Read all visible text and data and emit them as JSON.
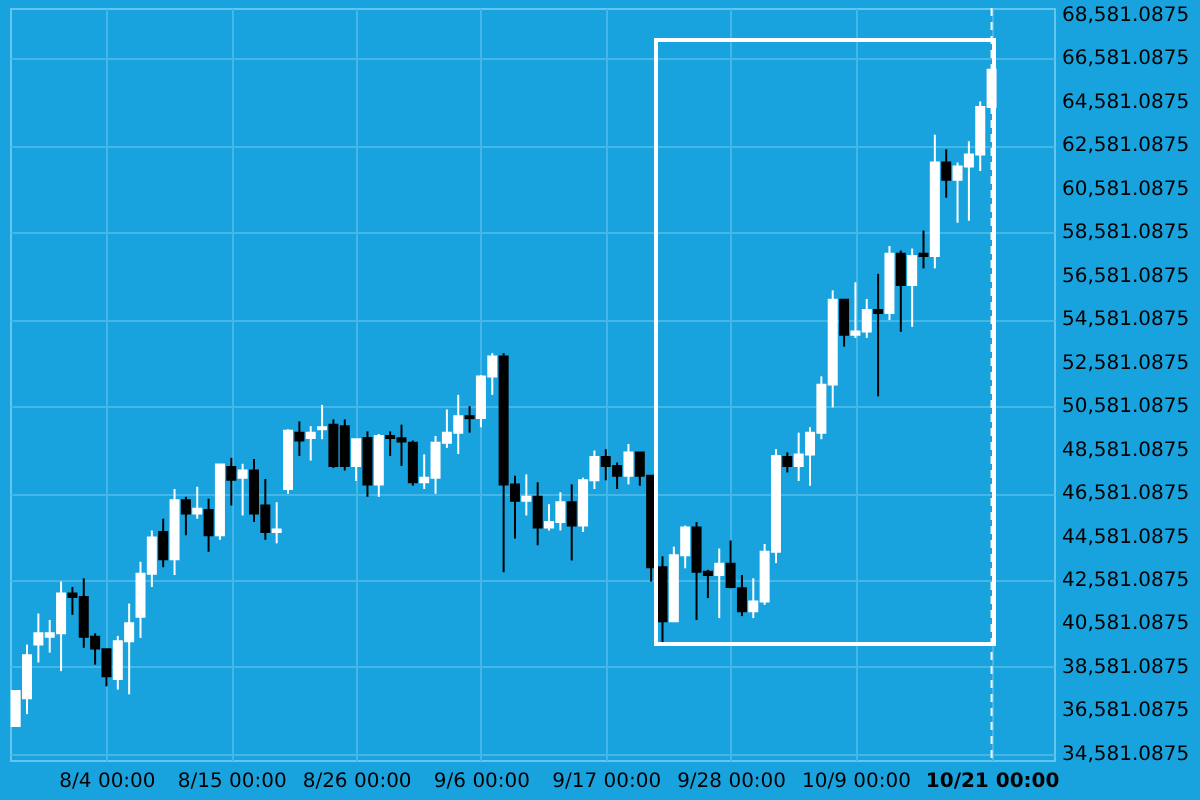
{
  "chart_data": {
    "type": "candlestick",
    "x": [
      "--07-27",
      "--07-28",
      "--07-29",
      "--07-30",
      "--07-31",
      "--08-01",
      "--08-02",
      "--08-03",
      "--08-04",
      "--08-05",
      "--08-06",
      "--08-07",
      "--08-08",
      "--08-09",
      "--08-10",
      "--08-11",
      "--08-12",
      "--08-13",
      "--08-14",
      "--08-15",
      "--08-16",
      "--08-17",
      "--08-18",
      "--08-19",
      "--08-20",
      "--08-21",
      "--08-22",
      "--08-23",
      "--08-24",
      "--08-25",
      "--08-26",
      "--08-27",
      "--08-28",
      "--08-29",
      "--08-30",
      "--08-31",
      "--09-01",
      "--09-02",
      "--09-03",
      "--09-04",
      "--09-05",
      "--09-06",
      "--09-07",
      "--09-08",
      "--09-09",
      "--09-10",
      "--09-11",
      "--09-12",
      "--09-13",
      "--09-14",
      "--09-15",
      "--09-16",
      "--09-17",
      "--09-18",
      "--09-19",
      "--09-20",
      "--09-21",
      "--09-22",
      "--09-23",
      "--09-24",
      "--09-25",
      "--09-26",
      "--09-27",
      "--09-28",
      "--09-29",
      "--09-30",
      "--10-01",
      "--10-02",
      "--10-03",
      "--10-04",
      "--10-05",
      "--10-06",
      "--10-07",
      "--10-08",
      "--10-09",
      "--10-10",
      "--10-11",
      "--10-12",
      "--10-13",
      "--10-14",
      "--10-15",
      "--10-16",
      "--10-17",
      "--10-18",
      "--10-19",
      "--10-20",
      "--10-21"
    ],
    "ohlc": [
      [
        35860,
        37480,
        35860,
        37480
      ],
      [
        37140,
        39610,
        36410,
        39120
      ],
      [
        39610,
        41040,
        38790,
        40130
      ],
      [
        39970,
        40740,
        39240,
        40130
      ],
      [
        40130,
        42510,
        38390,
        41960
      ],
      [
        41960,
        42260,
        40980,
        41800
      ],
      [
        41800,
        42660,
        39460,
        39970
      ],
      [
        39970,
        40130,
        38690,
        39430
      ],
      [
        39400,
        39400,
        37690,
        38150
      ],
      [
        38030,
        40010,
        37540,
        39760
      ],
      [
        39760,
        41500,
        37320,
        40590
      ],
      [
        40890,
        43420,
        39920,
        42870
      ],
      [
        42870,
        44860,
        42260,
        44540
      ],
      [
        44790,
        45400,
        43170,
        43540
      ],
      [
        43540,
        46770,
        42810,
        46250
      ],
      [
        46250,
        46410,
        44640,
        45640
      ],
      [
        45640,
        46870,
        45400,
        45860
      ],
      [
        45800,
        46320,
        43880,
        44640
      ],
      [
        44640,
        47900,
        44430,
        47900
      ],
      [
        47780,
        48200,
        46010,
        47190
      ],
      [
        47290,
        47930,
        45550,
        47620
      ],
      [
        47620,
        48150,
        45250,
        45640
      ],
      [
        46010,
        47230,
        44430,
        44790
      ],
      [
        44790,
        46160,
        44270,
        44900
      ],
      [
        46770,
        49520,
        46550,
        49450
      ],
      [
        49360,
        49880,
        48290,
        49000
      ],
      [
        49110,
        49660,
        48080,
        49360
      ],
      [
        49520,
        50640,
        49060,
        49610
      ],
      [
        49730,
        49970,
        47740,
        47830
      ],
      [
        49660,
        49970,
        47620,
        47830
      ],
      [
        47830,
        49060,
        47140,
        49060
      ],
      [
        49110,
        49420,
        46410,
        46980
      ],
      [
        46980,
        49300,
        46410,
        49210
      ],
      [
        49210,
        49420,
        48290,
        49110
      ],
      [
        49100,
        49730,
        47830,
        48960
      ],
      [
        48900,
        49000,
        46920,
        47080
      ],
      [
        47080,
        48360,
        46770,
        47290
      ],
      [
        47290,
        49210,
        46550,
        48900
      ],
      [
        48900,
        50430,
        48660,
        49360
      ],
      [
        49360,
        51100,
        48380,
        50120
      ],
      [
        50120,
        50580,
        49360,
        50030
      ],
      [
        50030,
        52010,
        49610,
        51950
      ],
      [
        51950,
        53020,
        51100,
        52860
      ],
      [
        52860,
        53020,
        42940,
        46980
      ],
      [
        46980,
        47380,
        44490,
        46230
      ],
      [
        46230,
        47440,
        45550,
        46410
      ],
      [
        46410,
        47080,
        44180,
        45000
      ],
      [
        45000,
        46070,
        44860,
        45250
      ],
      [
        45250,
        46620,
        44860,
        46160
      ],
      [
        46160,
        46980,
        43480,
        45090
      ],
      [
        45090,
        47290,
        44790,
        47170
      ],
      [
        47170,
        48540,
        46770,
        48240
      ],
      [
        48240,
        48600,
        47170,
        47830
      ],
      [
        47830,
        47990,
        46770,
        47380
      ],
      [
        47380,
        48840,
        46980,
        48450
      ],
      [
        48450,
        48450,
        46920,
        47380
      ],
      [
        47380,
        47380,
        42510,
        43170
      ],
      [
        43170,
        43670,
        39670,
        40680
      ],
      [
        40680,
        44120,
        40680,
        43720
      ],
      [
        43720,
        45090,
        43120,
        45000
      ],
      [
        45000,
        45250,
        40740,
        42960
      ],
      [
        42960,
        43050,
        41750,
        42810
      ],
      [
        42810,
        44030,
        40830,
        43330
      ],
      [
        43330,
        44400,
        42200,
        42260
      ],
      [
        42200,
        42810,
        40920,
        41140
      ],
      [
        41140,
        42660,
        40830,
        41590
      ],
      [
        41590,
        44240,
        41440,
        43880
      ],
      [
        43880,
        48600,
        43360,
        48290
      ],
      [
        48240,
        48450,
        47530,
        47830
      ],
      [
        47830,
        49360,
        47140,
        48360
      ],
      [
        48360,
        49610,
        46920,
        49360
      ],
      [
        49360,
        51950,
        49060,
        51560
      ],
      [
        51580,
        55910,
        50520,
        55480
      ],
      [
        55480,
        55480,
        53320,
        53870
      ],
      [
        53870,
        56280,
        53720,
        54020
      ],
      [
        54020,
        55510,
        53720,
        55000
      ],
      [
        55000,
        56670,
        51030,
        54870
      ],
      [
        54870,
        57950,
        54540,
        57590
      ],
      [
        57590,
        57740,
        54000,
        56150
      ],
      [
        56150,
        57830,
        54230,
        57490
      ],
      [
        57590,
        58660,
        56920,
        57490
      ],
      [
        57490,
        63070,
        56920,
        61790
      ],
      [
        61790,
        62400,
        60170,
        61000
      ],
      [
        61000,
        61790,
        59020,
        61610
      ],
      [
        61610,
        62770,
        59110,
        62160
      ],
      [
        62160,
        64600,
        61400,
        64350
      ],
      [
        64350,
        66060,
        64350,
        66060
      ]
    ],
    "colors": [
      "#ffffff",
      "#ffffff",
      "#ffffff",
      "#ffffff",
      "#ffffff",
      "#000000",
      "#000000",
      "#000000",
      "#000000",
      "#ffffff",
      "#ffffff",
      "#ffffff",
      "#ffffff",
      "#000000",
      "#ffffff",
      "#000000",
      "#ffffff",
      "#000000",
      "#ffffff",
      "#000000",
      "#ffffff",
      "#000000",
      "#000000",
      "#ffffff",
      "#ffffff",
      "#000000",
      "#ffffff",
      "#ffffff",
      "#000000",
      "#000000",
      "#ffffff",
      "#000000",
      "#ffffff",
      "#000000",
      "#000000",
      "#000000",
      "#ffffff",
      "#ffffff",
      "#ffffff",
      "#ffffff",
      "#000000",
      "#ffffff",
      "#ffffff",
      "#000000",
      "#000000",
      "#ffffff",
      "#000000",
      "#ffffff",
      "#ffffff",
      "#000000",
      "#ffffff",
      "#ffffff",
      "#000000",
      "#000000",
      "#ffffff",
      "#000000",
      "#000000",
      "#000000",
      "#ffffff",
      "#ffffff",
      "#000000",
      "#000000",
      "#ffffff",
      "#000000",
      "#000000",
      "#ffffff",
      "#ffffff",
      "#ffffff",
      "#000000",
      "#ffffff",
      "#ffffff",
      "#ffffff",
      "#ffffff",
      "#000000",
      "#ffffff",
      "#ffffff",
      "#000000",
      "#ffffff",
      "#000000",
      "#ffffff",
      "#000000",
      "#ffffff",
      "#000000",
      "#ffffff",
      "#ffffff",
      "#ffffff",
      "#ffffff"
    ],
    "xlim": [
      "--07-26T12:00",
      "--10-26T12:00"
    ],
    "xticks": [
      {
        "value": "--08-04",
        "label": "8/4 00:00"
      },
      {
        "value": "--08-15",
        "label": "8/15 00:00"
      },
      {
        "value": "--08-26",
        "label": "8/26 00:00"
      },
      {
        "value": "--09-06",
        "label": "9/6 00:00"
      },
      {
        "value": "--09-17",
        "label": "9/17 00:00"
      },
      {
        "value": "--09-28",
        "label": "9/28 00:00"
      },
      {
        "value": "--10-09",
        "label": "10/9 00:00"
      },
      {
        "value": "--10-21",
        "label": "10/21 00:00"
      }
    ],
    "ylim": [
      34300,
      68900
    ],
    "yticks": [
      {
        "value": 34581.0875,
        "label": "34,581.0875"
      },
      {
        "value": 36581.0875,
        "label": "36,581.0875"
      },
      {
        "value": 38581.0875,
        "label": "38,581.0875"
      },
      {
        "value": 40581.0875,
        "label": "40,581.0875"
      },
      {
        "value": 42581.0875,
        "label": "42,581.0875"
      },
      {
        "value": 44581.0875,
        "label": "44,581.0875"
      },
      {
        "value": 46581.0875,
        "label": "46,581.0875"
      },
      {
        "value": 48581.0875,
        "label": "48,581.0875"
      },
      {
        "value": 50581.0875,
        "label": "50,581.0875"
      },
      {
        "value": 52581.0875,
        "label": "52,581.0875"
      },
      {
        "value": 54581.0875,
        "label": "54,581.0875"
      },
      {
        "value": 56581.0875,
        "label": "56,581.0875"
      },
      {
        "value": 58581.0875,
        "label": "58,581.0875"
      },
      {
        "value": 60581.0875,
        "label": "60,581.0875"
      },
      {
        "value": 62581.0875,
        "label": "62,581.0875"
      },
      {
        "value": 64581.0875,
        "label": "64,581.0875"
      },
      {
        "value": 66581.0875,
        "label": "66,581.0875"
      },
      {
        "value": 68581.0875,
        "label": "68,581.0875"
      }
    ],
    "grid": true,
    "ref_lines": [
      {
        "axis": "x",
        "value": "--10-21",
        "color": "#ffffff",
        "line_style": "dashed"
      }
    ]
  }
}
